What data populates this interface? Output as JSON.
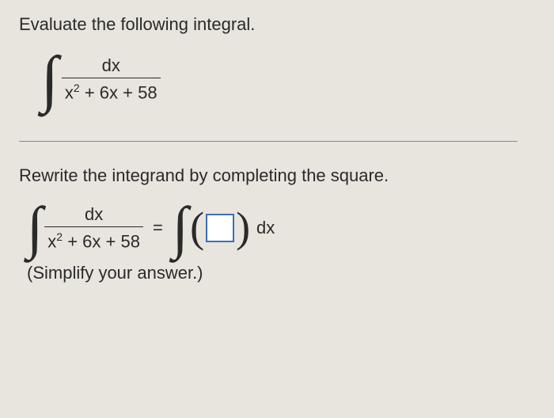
{
  "question": {
    "prompt": "Evaluate the following integral.",
    "integral1": {
      "numerator": "dx",
      "denominator_pre": "x",
      "denominator_exp": "2",
      "denominator_post": " + 6x + 58"
    }
  },
  "part": {
    "instruction": "Rewrite the integrand by completing the square.",
    "lhs": {
      "numerator": "dx",
      "denominator_pre": "x",
      "denominator_exp": "2",
      "denominator_post": " + 6x + 58"
    },
    "eq": "=",
    "rhs_dx": "dx",
    "note": "(Simplify your answer.)"
  },
  "style": {
    "background": "#e8e4de",
    "text_color": "#2a2a2a",
    "box_border": "#3b6fb6",
    "divider_color": "#8a8a8a",
    "font_body": "Arial",
    "font_math": "Times New Roman",
    "fontsize_body": 22,
    "fontsize_integral": 80
  }
}
